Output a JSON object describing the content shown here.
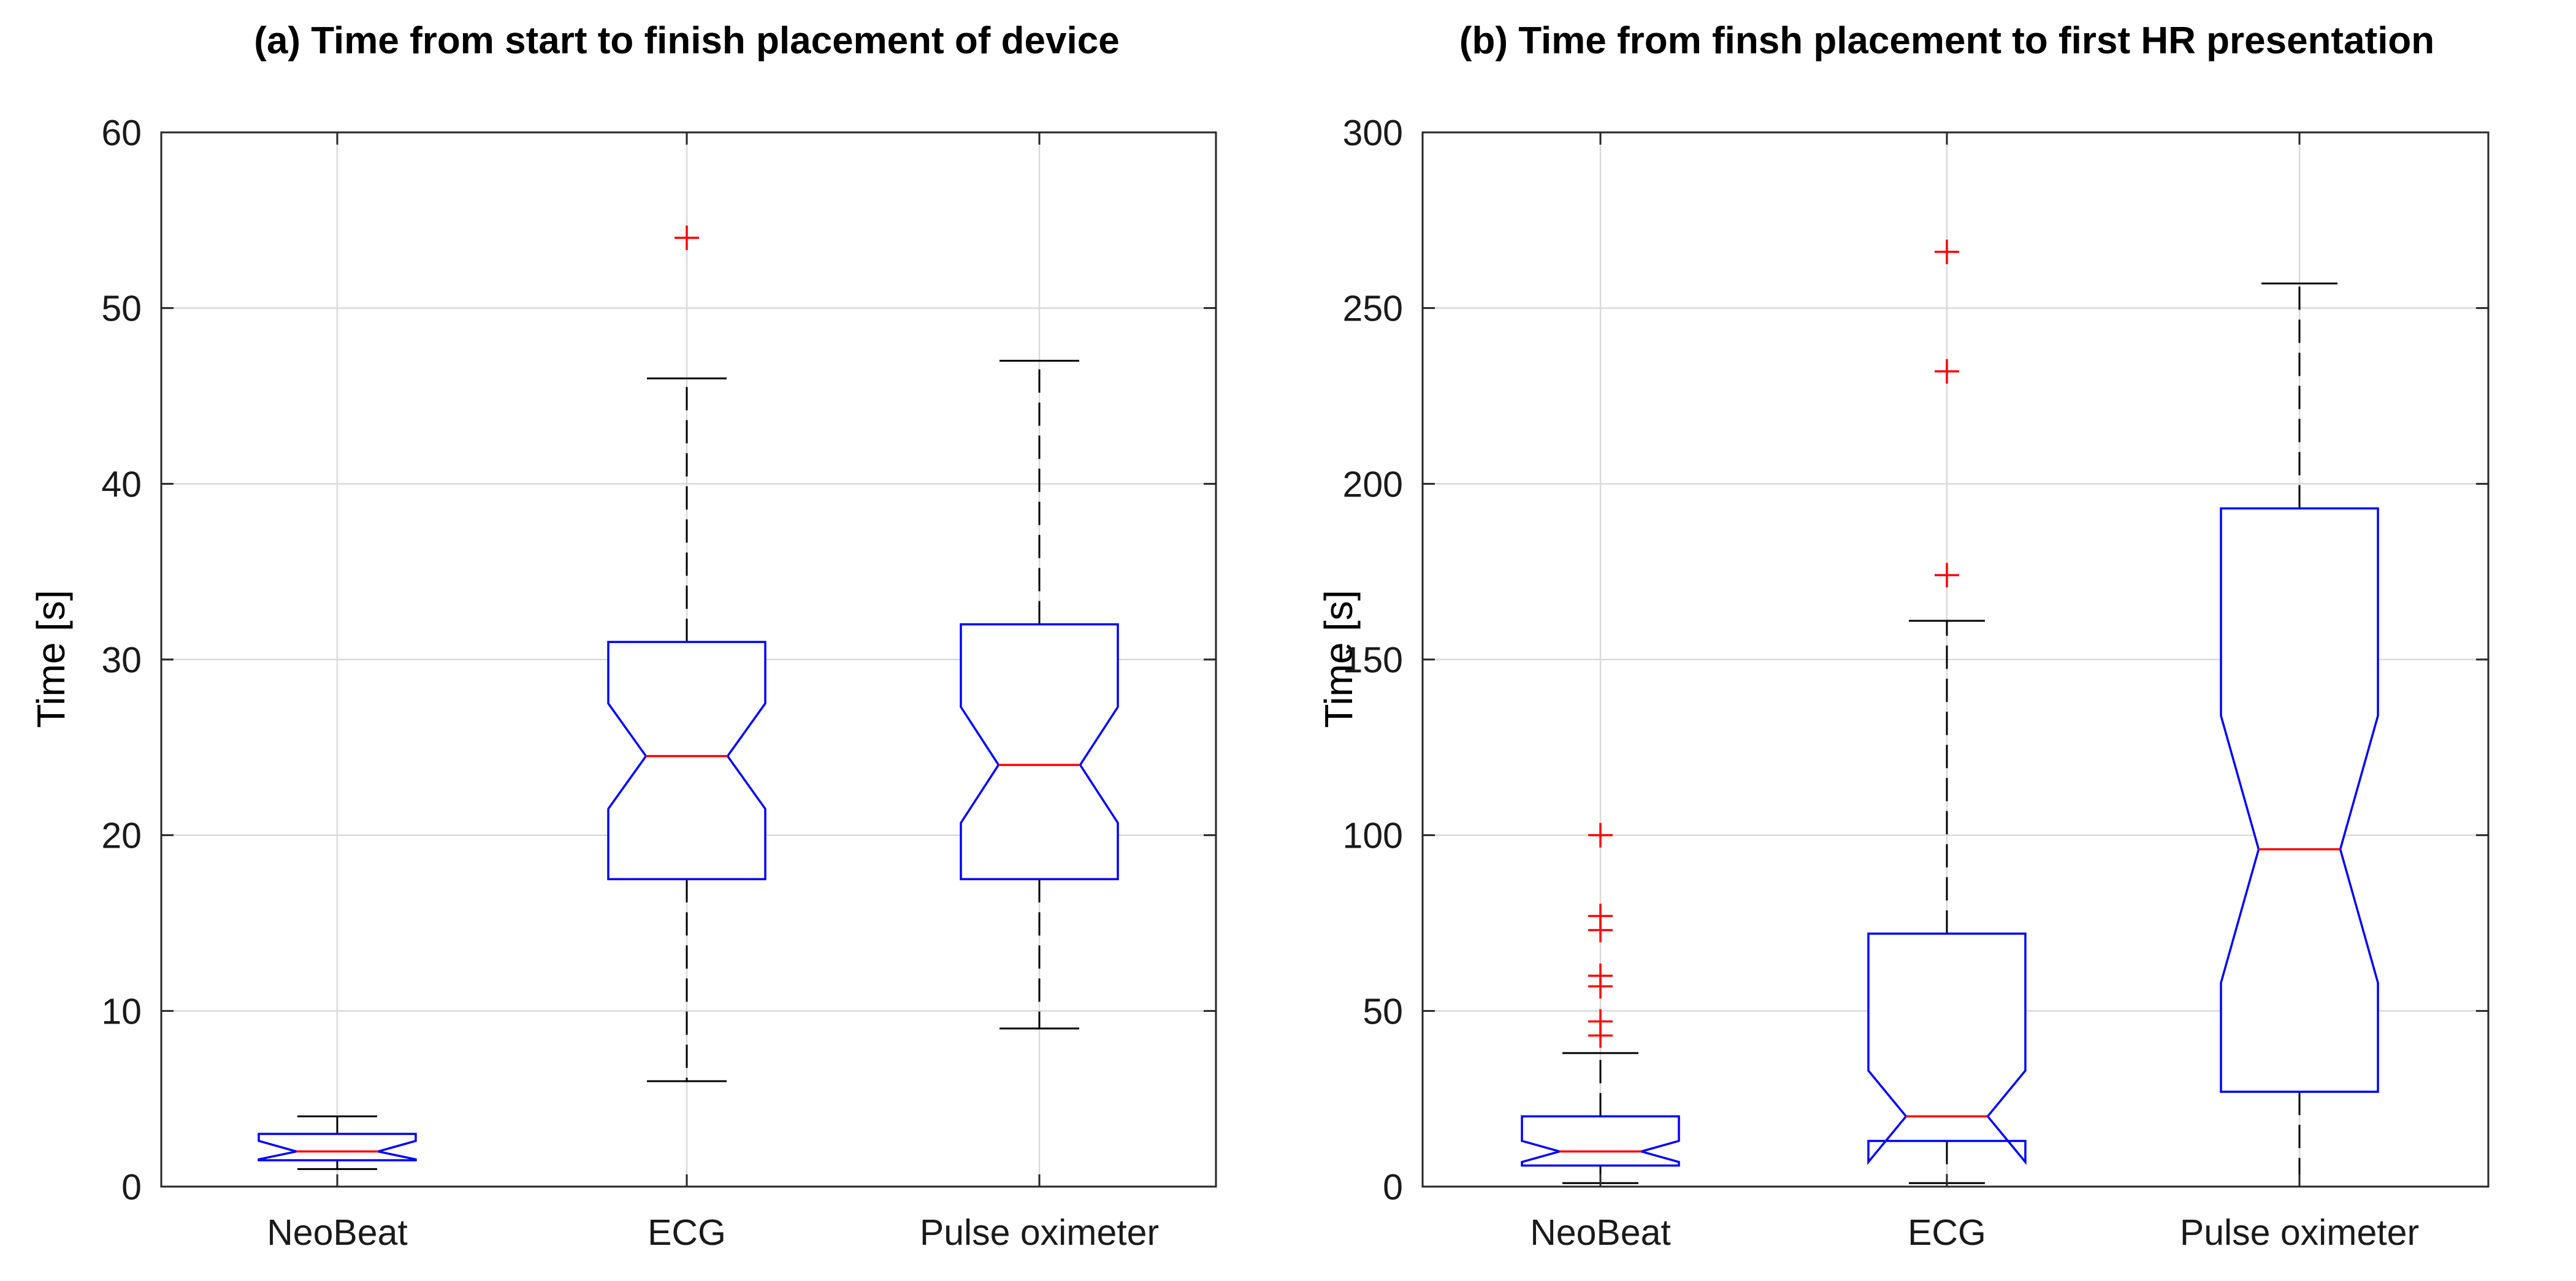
{
  "chart_data": [
    {
      "type": "box",
      "title": "(a) Time from start to finish placement of device",
      "xlabel": "",
      "ylabel": "Time [s]",
      "ylim": [
        0,
        60
      ],
      "yticks": [
        0,
        10,
        20,
        30,
        40,
        50,
        60
      ],
      "grid": true,
      "categories": [
        "NeoBeat",
        "ECG",
        "Pulse oximeter"
      ],
      "boxes": [
        {
          "category": "NeoBeat",
          "q1": 1.5,
          "median": 2,
          "q3": 3,
          "notch_low": 1.55,
          "notch_high": 2.6,
          "whisker_low": 1,
          "whisker_high": 4,
          "outliers": []
        },
        {
          "category": "ECG",
          "q1": 17.5,
          "median": 24.5,
          "q3": 31,
          "notch_low": 21.5,
          "notch_high": 27.5,
          "whisker_low": 6,
          "whisker_high": 46,
          "outliers": [
            54
          ]
        },
        {
          "category": "Pulse oximeter",
          "q1": 17.5,
          "median": 24,
          "q3": 32,
          "notch_low": 20.7,
          "notch_high": 27.3,
          "whisker_low": 9,
          "whisker_high": 47,
          "outliers": []
        }
      ]
    },
    {
      "type": "box",
      "title": "(b) Time from finsh placement to first HR presentation",
      "xlabel": "",
      "ylabel": "Time [s]",
      "ylim": [
        0,
        300
      ],
      "yticks": [
        0,
        50,
        100,
        150,
        200,
        250,
        300
      ],
      "grid": true,
      "categories": [
        "NeoBeat",
        "ECG",
        "Pulse oximeter"
      ],
      "boxes": [
        {
          "category": "NeoBeat",
          "q1": 6,
          "median": 10,
          "q3": 20,
          "notch_low": 7,
          "notch_high": 13,
          "whisker_low": 1,
          "whisker_high": 38,
          "outliers": [
            43,
            47,
            57,
            60,
            73,
            77,
            100
          ]
        },
        {
          "category": "ECG",
          "q1": 13,
          "median": 20,
          "q3": 72,
          "notch_low": 7,
          "notch_high": 33,
          "whisker_low": 1,
          "whisker_high": 161,
          "outliers": [
            174,
            232,
            266
          ]
        },
        {
          "category": "Pulse oximeter",
          "q1": 27,
          "median": 96,
          "q3": 193,
          "notch_low": 58,
          "notch_high": 134,
          "whisker_low": 0,
          "whisker_high": 257,
          "outliers": []
        }
      ]
    }
  ]
}
